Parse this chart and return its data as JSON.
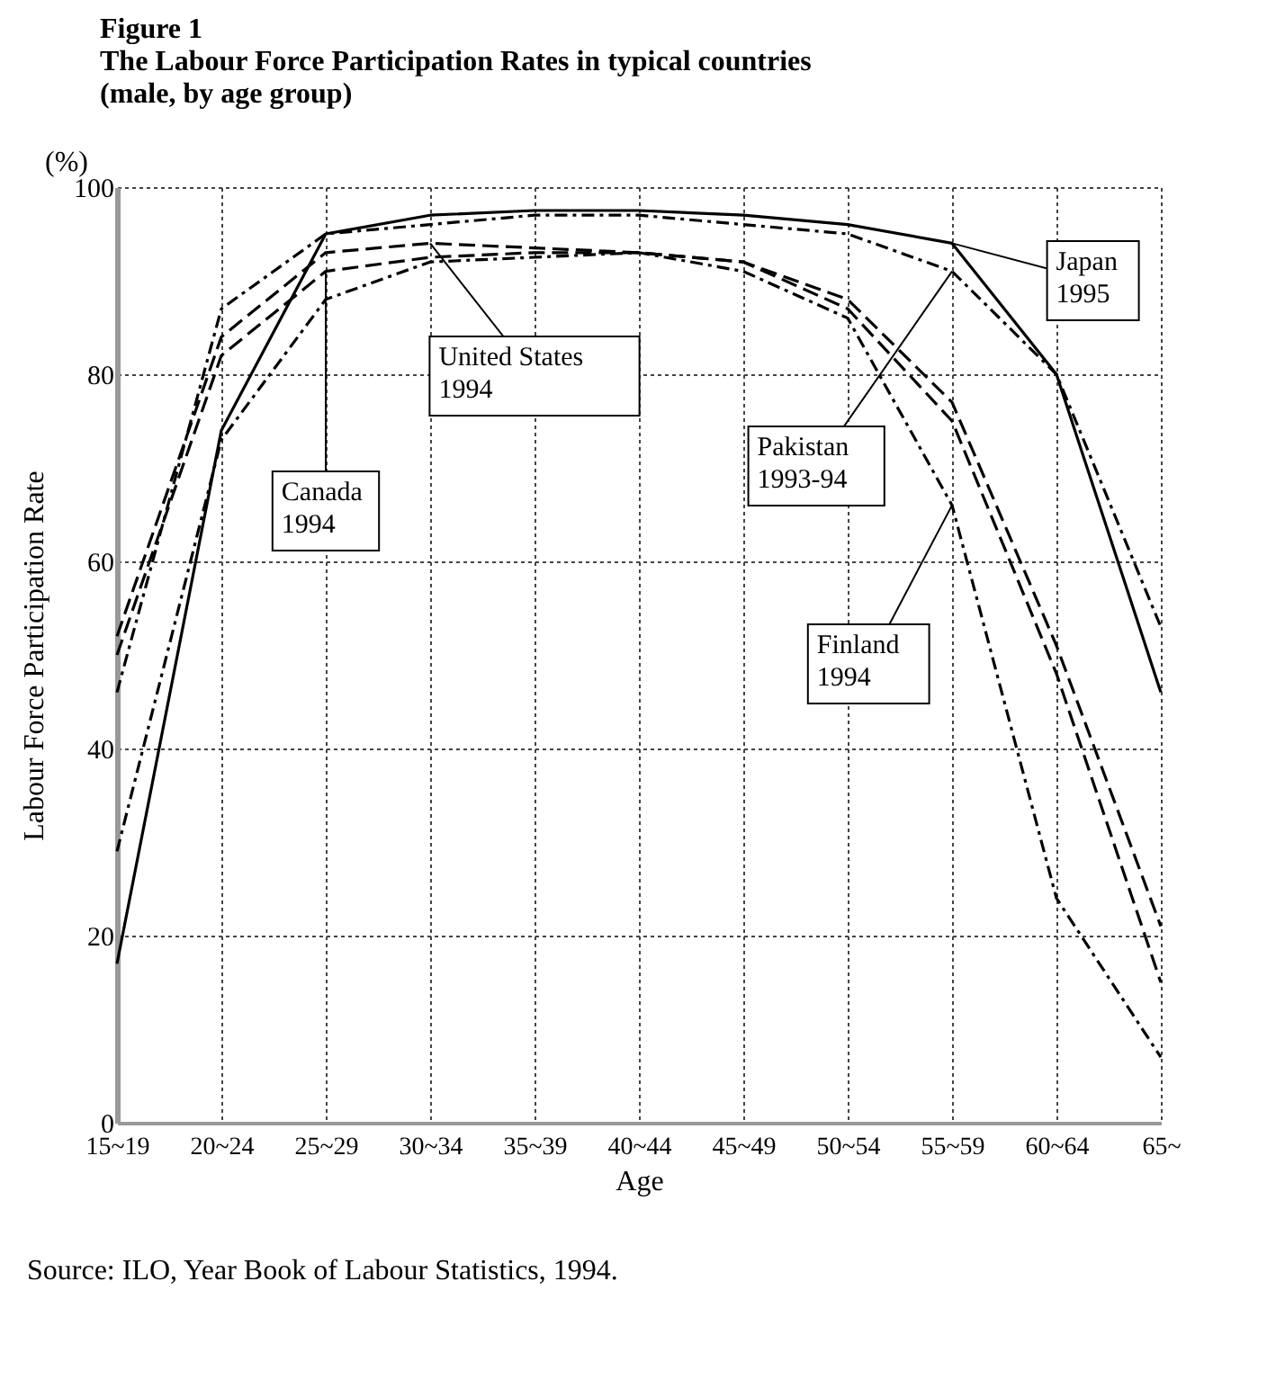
{
  "chart_data": {
    "type": "line",
    "title": "Figure 1",
    "subtitle": "The Labour Force Participation Rates in typical countries\n(male, by age group)",
    "xlabel": "Age",
    "ylabel": "Labour Force Participation Rate",
    "annotations": [
      "(%)",
      "Source: ILO, Year Book of Labour Statistics, 1994."
    ],
    "categories": [
      "15~19",
      "20~24",
      "25~29",
      "30~34",
      "35~39",
      "40~44",
      "45~49",
      "50~54",
      "55~59",
      "60~64",
      "65~"
    ],
    "series": [
      {
        "name": "Japan 1995",
        "color": "#000000",
        "line_style": "solid",
        "values": [
          17,
          74,
          95,
          97,
          97.5,
          97.5,
          97,
          96,
          94,
          80,
          46
        ]
      },
      {
        "name": "United States 1994",
        "color": "#000000",
        "line_style": "dashed",
        "values": [
          52,
          84,
          93,
          94,
          93.5,
          93,
          92,
          88,
          77,
          51,
          21
        ]
      },
      {
        "name": "Canada 1994",
        "color": "#000000",
        "line_style": "dashed",
        "values": [
          50,
          82,
          91,
          92.5,
          93,
          93,
          92,
          87,
          75,
          48,
          15
        ]
      },
      {
        "name": "Pakistan 1993-94",
        "color": "#000000",
        "line_style": "dotted",
        "values": [
          46,
          87,
          95,
          96,
          97,
          97,
          96,
          95,
          91,
          80,
          53
        ]
      },
      {
        "name": "Finland 1994",
        "color": "#000000",
        "line_style": "dotted",
        "values": [
          29,
          73,
          88,
          92,
          92.5,
          93,
          91,
          86,
          66,
          24,
          7
        ]
      }
    ],
    "ylim": [
      0,
      100
    ],
    "yticks": [
      0,
      20,
      40,
      60,
      80,
      100
    ],
    "grid": true
  }
}
